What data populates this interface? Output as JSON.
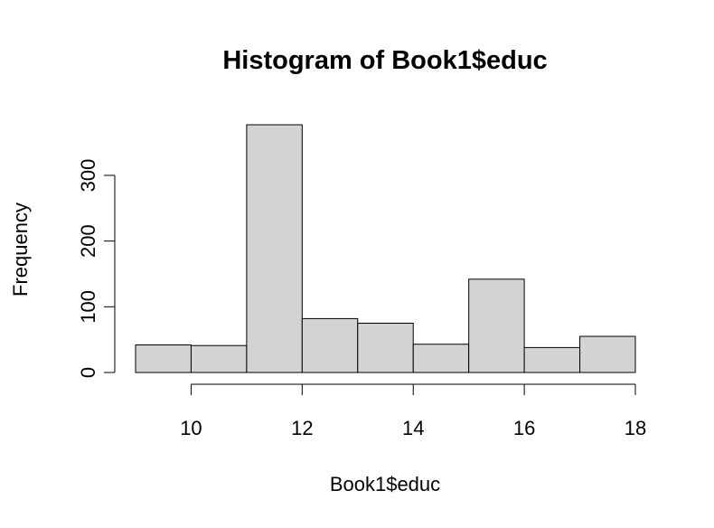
{
  "chart_data": {
    "type": "histogram",
    "title": "Histogram of Book1$educ",
    "xlabel": "Book1$educ",
    "ylabel": "Frequency",
    "bins": [
      {
        "start": 9,
        "end": 10,
        "count": 42
      },
      {
        "start": 10,
        "end": 11,
        "count": 41
      },
      {
        "start": 11,
        "end": 12,
        "count": 377
      },
      {
        "start": 12,
        "end": 13,
        "count": 82
      },
      {
        "start": 13,
        "end": 14,
        "count": 75
      },
      {
        "start": 14,
        "end": 15,
        "count": 43
      },
      {
        "start": 15,
        "end": 16,
        "count": 142
      },
      {
        "start": 16,
        "end": 17,
        "count": 38
      },
      {
        "start": 17,
        "end": 18,
        "count": 55
      }
    ],
    "x_ticks": [
      10,
      12,
      14,
      16,
      18
    ],
    "y_ticks": [
      0,
      100,
      200,
      300
    ],
    "xlim": [
      9,
      18
    ],
    "ylim": [
      0,
      377
    ],
    "colors": {
      "bar_fill": "#d3d3d3",
      "bar_stroke": "#000000"
    }
  }
}
